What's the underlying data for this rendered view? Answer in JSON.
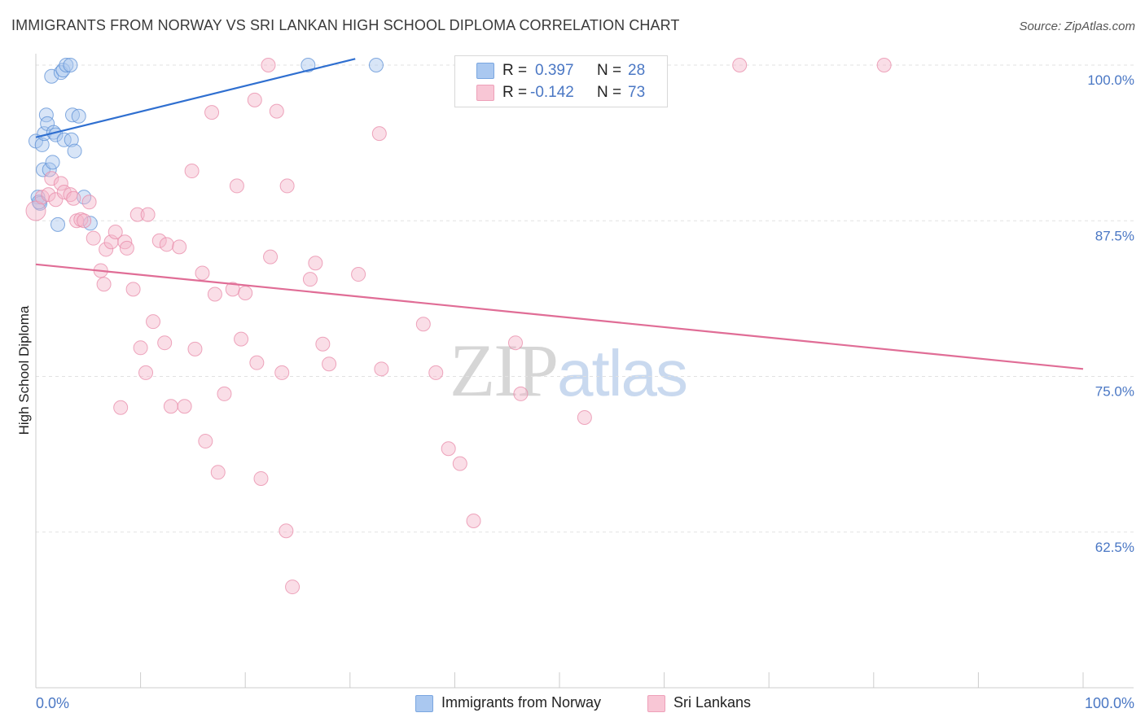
{
  "title": "IMMIGRANTS FROM NORWAY VS SRI LANKAN HIGH SCHOOL DIPLOMA CORRELATION CHART",
  "source": "Source: ZipAtlas.com",
  "watermark": {
    "zip": "ZIP",
    "atlas": "atlas"
  },
  "stats": {
    "norway": {
      "r_label": "R =",
      "r_value": "0.397",
      "n_label": "N =",
      "n_value": "28",
      "color": "#aac8f0"
    },
    "srilankan": {
      "r_label": "R =",
      "r_value": "-0.142",
      "n_label": "N =",
      "n_value": "73",
      "color": "#f6b8cb"
    }
  },
  "legend": {
    "norway": "Immigrants from Norway",
    "srilankan": "Sri Lankans"
  },
  "chart_data": {
    "type": "scatter",
    "xlabel": "",
    "ylabel": "High School Diploma",
    "xlim": [
      0,
      100
    ],
    "ylim": [
      50,
      100
    ],
    "x_tick_labels": [
      "0.0%",
      "100.0%"
    ],
    "y_ticks": [
      {
        "value": 100,
        "label": "100.0%"
      },
      {
        "value": 87.5,
        "label": "87.5%"
      },
      {
        "value": 75,
        "label": "75.0%"
      },
      {
        "value": 62.5,
        "label": "62.5%"
      }
    ],
    "grid": true,
    "legend_position": "bottom",
    "series": [
      {
        "name": "Immigrants from Norway",
        "color": "#5b8fd6",
        "fill": "#a9c6ee",
        "trend": {
          "x": [
            0,
            30.5
          ],
          "y": [
            94.2,
            100.5
          ],
          "color": "#2f6fd0"
        },
        "points": [
          [
            0.0,
            93.9
          ],
          [
            0.2,
            89.4
          ],
          [
            0.4,
            88.9
          ],
          [
            0.6,
            93.6
          ],
          [
            0.7,
            91.6
          ],
          [
            0.8,
            94.5
          ],
          [
            1.0,
            96.0
          ],
          [
            1.1,
            95.3
          ],
          [
            1.3,
            91.6
          ],
          [
            1.5,
            99.1
          ],
          [
            1.6,
            92.2
          ],
          [
            1.7,
            94.6
          ],
          [
            1.9,
            94.4
          ],
          [
            2.1,
            87.2
          ],
          [
            2.4,
            99.4
          ],
          [
            2.6,
            99.6
          ],
          [
            2.7,
            94.0
          ],
          [
            2.9,
            100.0
          ],
          [
            3.3,
            100.0
          ],
          [
            3.4,
            94.0
          ],
          [
            3.5,
            96.0
          ],
          [
            3.7,
            93.1
          ],
          [
            4.1,
            95.9
          ],
          [
            4.6,
            89.4
          ],
          [
            5.2,
            87.3
          ],
          [
            26.0,
            100.0
          ],
          [
            32.5,
            100.0
          ],
          [
            0.3,
            89.0
          ]
        ]
      },
      {
        "name": "Sri Lankans",
        "color": "#e889a8",
        "fill": "#f5b6c9",
        "trend": {
          "x": [
            0,
            100
          ],
          "y": [
            84.0,
            75.6
          ],
          "color": "#e06d96"
        },
        "points": [
          [
            0.0,
            88.3
          ],
          [
            0.6,
            89.4
          ],
          [
            1.2,
            89.6
          ],
          [
            1.5,
            90.9
          ],
          [
            1.9,
            89.2
          ],
          [
            2.4,
            90.5
          ],
          [
            2.7,
            89.8
          ],
          [
            3.3,
            89.6
          ],
          [
            3.6,
            89.3
          ],
          [
            3.9,
            87.5
          ],
          [
            4.3,
            87.6
          ],
          [
            4.6,
            87.5
          ],
          [
            5.1,
            89.0
          ],
          [
            5.5,
            86.1
          ],
          [
            6.2,
            83.5
          ],
          [
            6.5,
            82.4
          ],
          [
            6.7,
            85.2
          ],
          [
            7.2,
            85.8
          ],
          [
            7.6,
            86.6
          ],
          [
            8.1,
            72.5
          ],
          [
            8.5,
            85.8
          ],
          [
            8.7,
            85.3
          ],
          [
            9.3,
            82.0
          ],
          [
            9.7,
            88.0
          ],
          [
            10.0,
            77.3
          ],
          [
            10.5,
            75.3
          ],
          [
            10.7,
            88.0
          ],
          [
            11.2,
            79.4
          ],
          [
            11.8,
            85.9
          ],
          [
            12.3,
            77.7
          ],
          [
            12.5,
            85.6
          ],
          [
            12.9,
            72.6
          ],
          [
            13.7,
            85.4
          ],
          [
            14.2,
            72.6
          ],
          [
            14.9,
            91.5
          ],
          [
            15.2,
            77.2
          ],
          [
            15.9,
            83.3
          ],
          [
            16.2,
            69.8
          ],
          [
            16.8,
            96.2
          ],
          [
            17.1,
            81.6
          ],
          [
            17.4,
            67.3
          ],
          [
            18.0,
            73.6
          ],
          [
            18.8,
            82.0
          ],
          [
            19.2,
            90.3
          ],
          [
            19.6,
            78.0
          ],
          [
            20.0,
            81.7
          ],
          [
            20.9,
            97.2
          ],
          [
            21.1,
            76.1
          ],
          [
            21.5,
            66.8
          ],
          [
            22.4,
            84.6
          ],
          [
            23.0,
            96.3
          ],
          [
            23.5,
            75.3
          ],
          [
            23.9,
            62.6
          ],
          [
            24.0,
            90.3
          ],
          [
            24.5,
            58.1
          ],
          [
            26.2,
            82.8
          ],
          [
            26.7,
            84.1
          ],
          [
            27.4,
            77.6
          ],
          [
            28.0,
            76.0
          ],
          [
            30.8,
            83.2
          ],
          [
            32.8,
            94.5
          ],
          [
            33.0,
            75.6
          ],
          [
            37.0,
            79.2
          ],
          [
            38.2,
            75.3
          ],
          [
            39.4,
            69.2
          ],
          [
            40.5,
            68.0
          ],
          [
            41.8,
            63.4
          ],
          [
            45.8,
            77.7
          ],
          [
            46.3,
            73.6
          ],
          [
            52.4,
            71.7
          ],
          [
            67.2,
            100.0
          ],
          [
            81.0,
            100.0
          ],
          [
            22.2,
            100.0
          ]
        ]
      }
    ]
  }
}
